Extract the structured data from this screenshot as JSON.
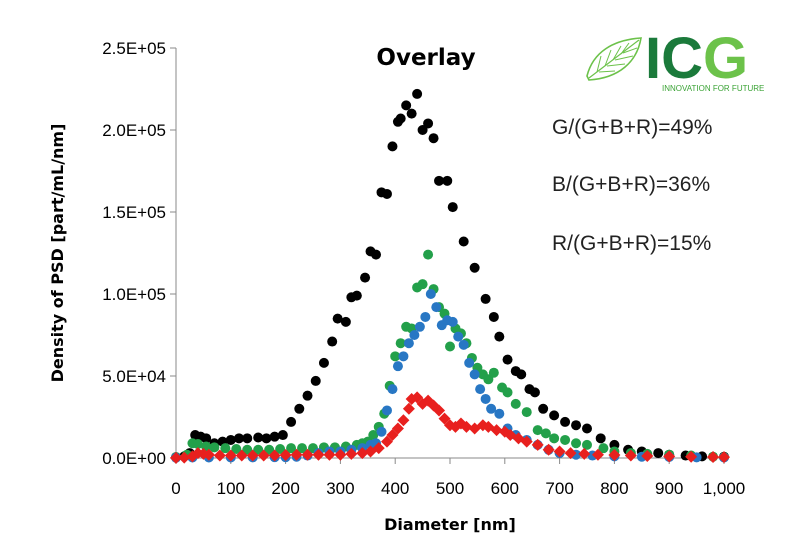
{
  "logo": {
    "letters": "ICG",
    "tagline": "INNOVATION FOR FUTURE",
    "colors": {
      "dark": "#1b7a3b",
      "light": "#6cc24a"
    }
  },
  "annotations": [
    "G/(G+B+R)=49%",
    "B/(G+B+R)=36%",
    "R/(G+B+R)=15%"
  ],
  "chart_data": {
    "type": "scatter",
    "title": "Overlay",
    "xlabel": "Diameter [nm]",
    "ylabel": "Density of PSD [part/mL/nm]",
    "xlim": [
      0,
      1000
    ],
    "ylim": [
      0,
      250000
    ],
    "x_ticks": [
      0,
      100,
      200,
      300,
      400,
      500,
      600,
      700,
      800,
      900,
      1000
    ],
    "x_tick_labels": [
      "0",
      "100",
      "200",
      "300",
      "400",
      "500",
      "600",
      "700",
      "800",
      "900",
      "1,000"
    ],
    "y_ticks": [
      0,
      50000,
      100000,
      150000,
      200000,
      250000
    ],
    "y_tick_labels": [
      "0.0E+00",
      "5.0E+04",
      "1.0E+05",
      "1.5E+05",
      "2.0E+05",
      "2.5E+05"
    ],
    "grid": false,
    "series": [
      {
        "color": "#000000",
        "marker": "circle",
        "points": [
          [
            0,
            500
          ],
          [
            15,
            1000
          ],
          [
            25,
            3000
          ],
          [
            35,
            14000
          ],
          [
            45,
            13000
          ],
          [
            55,
            12000
          ],
          [
            70,
            9000
          ],
          [
            85,
            10000
          ],
          [
            100,
            11000
          ],
          [
            115,
            12000
          ],
          [
            130,
            12000
          ],
          [
            150,
            12500
          ],
          [
            165,
            12000
          ],
          [
            180,
            13000
          ],
          [
            195,
            14000
          ],
          [
            210,
            22000
          ],
          [
            225,
            30000
          ],
          [
            240,
            38000
          ],
          [
            255,
            47000
          ],
          [
            270,
            58000
          ],
          [
            285,
            71000
          ],
          [
            295,
            85000
          ],
          [
            310,
            83000
          ],
          [
            320,
            98000
          ],
          [
            330,
            99000
          ],
          [
            345,
            110000
          ],
          [
            355,
            126000
          ],
          [
            365,
            124000
          ],
          [
            375,
            162000
          ],
          [
            385,
            161000
          ],
          [
            395,
            190000
          ],
          [
            405,
            205000
          ],
          [
            410,
            207000
          ],
          [
            420,
            215000
          ],
          [
            430,
            210000
          ],
          [
            440,
            222000
          ],
          [
            450,
            200000
          ],
          [
            460,
            204000
          ],
          [
            470,
            195000
          ],
          [
            480,
            169000
          ],
          [
            495,
            169000
          ],
          [
            505,
            153000
          ],
          [
            525,
            132000
          ],
          [
            545,
            116000
          ],
          [
            565,
            97000
          ],
          [
            580,
            86000
          ],
          [
            590,
            74000
          ],
          [
            605,
            60000
          ],
          [
            620,
            53000
          ],
          [
            630,
            51000
          ],
          [
            645,
            42000
          ],
          [
            655,
            40000
          ],
          [
            670,
            30000
          ],
          [
            690,
            26000
          ],
          [
            710,
            22000
          ],
          [
            730,
            20000
          ],
          [
            750,
            18000
          ],
          [
            775,
            12000
          ],
          [
            800,
            8000
          ],
          [
            825,
            5000
          ],
          [
            850,
            4000
          ],
          [
            880,
            3000
          ],
          [
            900,
            2000
          ],
          [
            930,
            1500
          ],
          [
            960,
            1000
          ],
          [
            1000,
            800
          ]
        ]
      },
      {
        "color": "#23a04a",
        "marker": "circle",
        "points": [
          [
            0,
            500
          ],
          [
            20,
            2000
          ],
          [
            30,
            9000
          ],
          [
            40,
            8500
          ],
          [
            55,
            7000
          ],
          [
            70,
            6500
          ],
          [
            90,
            6000
          ],
          [
            110,
            5500
          ],
          [
            130,
            5000
          ],
          [
            150,
            5000
          ],
          [
            170,
            5000
          ],
          [
            190,
            5500
          ],
          [
            210,
            6000
          ],
          [
            230,
            6000
          ],
          [
            250,
            6000
          ],
          [
            270,
            6500
          ],
          [
            290,
            6500
          ],
          [
            310,
            7000
          ],
          [
            330,
            8000
          ],
          [
            340,
            9000
          ],
          [
            350,
            10000
          ],
          [
            360,
            14000
          ],
          [
            370,
            19000
          ],
          [
            380,
            27000
          ],
          [
            390,
            44000
          ],
          [
            400,
            62000
          ],
          [
            410,
            70000
          ],
          [
            420,
            80000
          ],
          [
            430,
            79000
          ],
          [
            440,
            104000
          ],
          [
            450,
            106000
          ],
          [
            460,
            124000
          ],
          [
            470,
            103000
          ],
          [
            480,
            92000
          ],
          [
            490,
            88000
          ],
          [
            500,
            68000
          ],
          [
            510,
            79000
          ],
          [
            520,
            76000
          ],
          [
            530,
            70000
          ],
          [
            540,
            61000
          ],
          [
            550,
            55000
          ],
          [
            560,
            51000
          ],
          [
            570,
            48000
          ],
          [
            580,
            52000
          ],
          [
            595,
            43000
          ],
          [
            605,
            40000
          ],
          [
            620,
            33000
          ],
          [
            640,
            28000
          ],
          [
            660,
            17000
          ],
          [
            675,
            15000
          ],
          [
            690,
            12000
          ],
          [
            710,
            11000
          ],
          [
            730,
            9000
          ],
          [
            750,
            8000
          ],
          [
            780,
            6000
          ],
          [
            800,
            4000
          ],
          [
            830,
            3000
          ],
          [
            860,
            2500
          ],
          [
            900,
            2000
          ],
          [
            940,
            1500
          ],
          [
            980,
            800
          ],
          [
            1000,
            500
          ]
        ]
      },
      {
        "color": "#2877c4",
        "marker": "circle",
        "points": [
          [
            0,
            200
          ],
          [
            30,
            300
          ],
          [
            60,
            300
          ],
          [
            100,
            300
          ],
          [
            140,
            400
          ],
          [
            180,
            500
          ],
          [
            200,
            500
          ],
          [
            220,
            800
          ],
          [
            240,
            1500
          ],
          [
            260,
            3000
          ],
          [
            280,
            4000
          ],
          [
            300,
            4000
          ],
          [
            320,
            5000
          ],
          [
            340,
            6000
          ],
          [
            355,
            8000
          ],
          [
            365,
            9000
          ],
          [
            375,
            16000
          ],
          [
            385,
            29000
          ],
          [
            395,
            42000
          ],
          [
            405,
            56000
          ],
          [
            415,
            62000
          ],
          [
            425,
            70000
          ],
          [
            435,
            75000
          ],
          [
            445,
            80000
          ],
          [
            455,
            86000
          ],
          [
            465,
            100000
          ],
          [
            475,
            92000
          ],
          [
            485,
            81000
          ],
          [
            495,
            84000
          ],
          [
            505,
            83000
          ],
          [
            515,
            74000
          ],
          [
            525,
            69000
          ],
          [
            535,
            58000
          ],
          [
            545,
            51000
          ],
          [
            555,
            42000
          ],
          [
            565,
            36000
          ],
          [
            575,
            30000
          ],
          [
            590,
            27000
          ],
          [
            605,
            18000
          ],
          [
            620,
            14000
          ],
          [
            640,
            11000
          ],
          [
            660,
            8000
          ],
          [
            680,
            5000
          ],
          [
            700,
            3000
          ],
          [
            730,
            2000
          ],
          [
            760,
            1500
          ],
          [
            800,
            1000
          ],
          [
            850,
            800
          ],
          [
            900,
            600
          ],
          [
            950,
            400
          ],
          [
            1000,
            300
          ]
        ]
      },
      {
        "color": "#e8201e",
        "marker": "diamond",
        "points": [
          [
            0,
            100
          ],
          [
            15,
            200
          ],
          [
            30,
            1000
          ],
          [
            40,
            3000
          ],
          [
            50,
            2500
          ],
          [
            60,
            2000
          ],
          [
            80,
            1500
          ],
          [
            100,
            1500
          ],
          [
            120,
            1500
          ],
          [
            140,
            1500
          ],
          [
            160,
            1500
          ],
          [
            180,
            1500
          ],
          [
            200,
            1800
          ],
          [
            220,
            2000
          ],
          [
            240,
            2000
          ],
          [
            260,
            2000
          ],
          [
            280,
            2000
          ],
          [
            300,
            2000
          ],
          [
            320,
            2500
          ],
          [
            340,
            3000
          ],
          [
            355,
            4000
          ],
          [
            370,
            6000
          ],
          [
            385,
            10000
          ],
          [
            395,
            14000
          ],
          [
            405,
            18000
          ],
          [
            415,
            23000
          ],
          [
            425,
            30000
          ],
          [
            430,
            36000
          ],
          [
            440,
            37000
          ],
          [
            450,
            33000
          ],
          [
            460,
            35000
          ],
          [
            470,
            32000
          ],
          [
            480,
            29000
          ],
          [
            490,
            24000
          ],
          [
            500,
            20000
          ],
          [
            510,
            19000
          ],
          [
            520,
            21000
          ],
          [
            530,
            19000
          ],
          [
            545,
            18000
          ],
          [
            560,
            20000
          ],
          [
            570,
            19000
          ],
          [
            585,
            17000
          ],
          [
            600,
            16000
          ],
          [
            610,
            14000
          ],
          [
            625,
            12000
          ],
          [
            640,
            10000
          ],
          [
            660,
            8000
          ],
          [
            680,
            5000
          ],
          [
            700,
            4000
          ],
          [
            720,
            3000
          ],
          [
            745,
            2500
          ],
          [
            770,
            2000
          ],
          [
            800,
            1800
          ],
          [
            830,
            1500
          ],
          [
            860,
            1200
          ],
          [
            900,
            1000
          ],
          [
            940,
            800
          ],
          [
            980,
            600
          ],
          [
            1000,
            500
          ]
        ]
      }
    ]
  }
}
